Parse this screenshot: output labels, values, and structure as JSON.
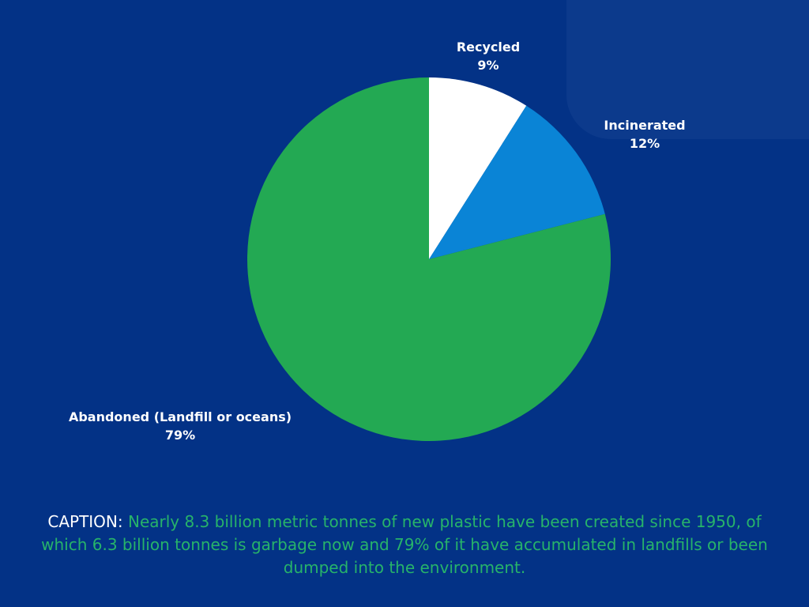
{
  "chart_data": {
    "type": "pie",
    "slices": [
      {
        "label": "Recycled",
        "value": 9,
        "value_label": "9%",
        "color": "#ffffff"
      },
      {
        "label": "Incinerated",
        "value": 12,
        "value_label": "12%",
        "color": "#0a84d6"
      },
      {
        "label": "Abandoned (Landfill or oceans)",
        "value": 79,
        "value_label": "79%",
        "color": "#23a953"
      }
    ],
    "start_angle": "top (12 o'clock)",
    "direction": "clockwise"
  },
  "caption": {
    "prefix": "CAPTION:",
    "text": "Nearly 8.3 billion metric tonnes of new plastic have been created since 1950, of which 6.3 billion tonnes is garbage now and 79% of it have accumulated in landfills or been dumped into the environment."
  },
  "colors": {
    "background": "#033286",
    "corner_panel": "#0c3a8c",
    "caption_text": "#27b36a",
    "label_text": "#ffffff"
  }
}
